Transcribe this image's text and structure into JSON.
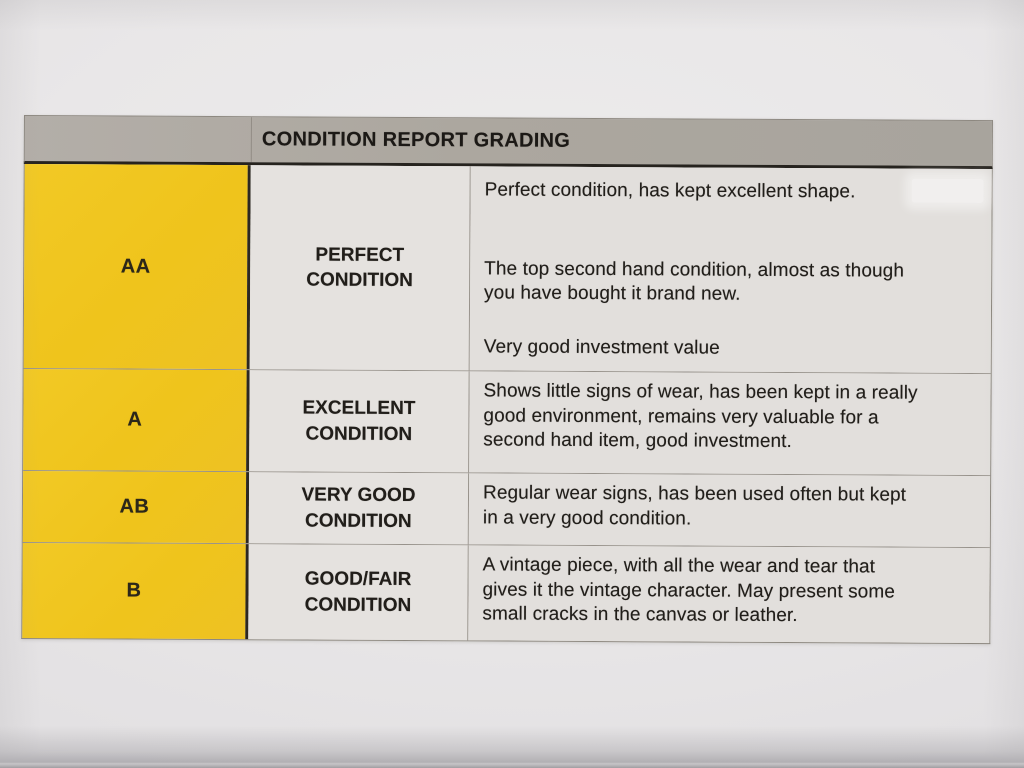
{
  "document": {
    "header": {
      "title": "CONDITION REPORT GRADING"
    },
    "table": {
      "rows": [
        {
          "grade": "AA",
          "label": "PERFECT CONDITION",
          "description_paragraphs": [
            "Perfect condition, has kept excellent shape.",
            "The top second hand condition, almost as though\nyou have bought it brand new.",
            "Very good investment value"
          ]
        },
        {
          "grade": "A",
          "label": "EXCELLENT CONDITION",
          "description_paragraphs": [
            "Shows little signs of wear, has been kept in a really\ngood environment, remains very valuable for a\nsecond hand item, good investment."
          ]
        },
        {
          "grade": "AB",
          "label": "VERY GOOD CONDITION",
          "description_paragraphs": [
            "Regular wear signs, has been used often but kept\nin a very good condition."
          ]
        },
        {
          "grade": "B",
          "label": "GOOD/FAIR CONDITION",
          "description_paragraphs": [
            "A vintage piece, with all the wear and tear that\ngives it the vintage character. May present some\nsmall cracks in the canvas or leather."
          ]
        }
      ]
    },
    "colors": {
      "grade_column_yellow": "#efc41c",
      "header_bar_gray": "#aca79f",
      "cell_background": "#e2dfdc",
      "paper_background": "#e9e7e8",
      "text": "#211e1a",
      "header_border": "#26231e"
    }
  }
}
